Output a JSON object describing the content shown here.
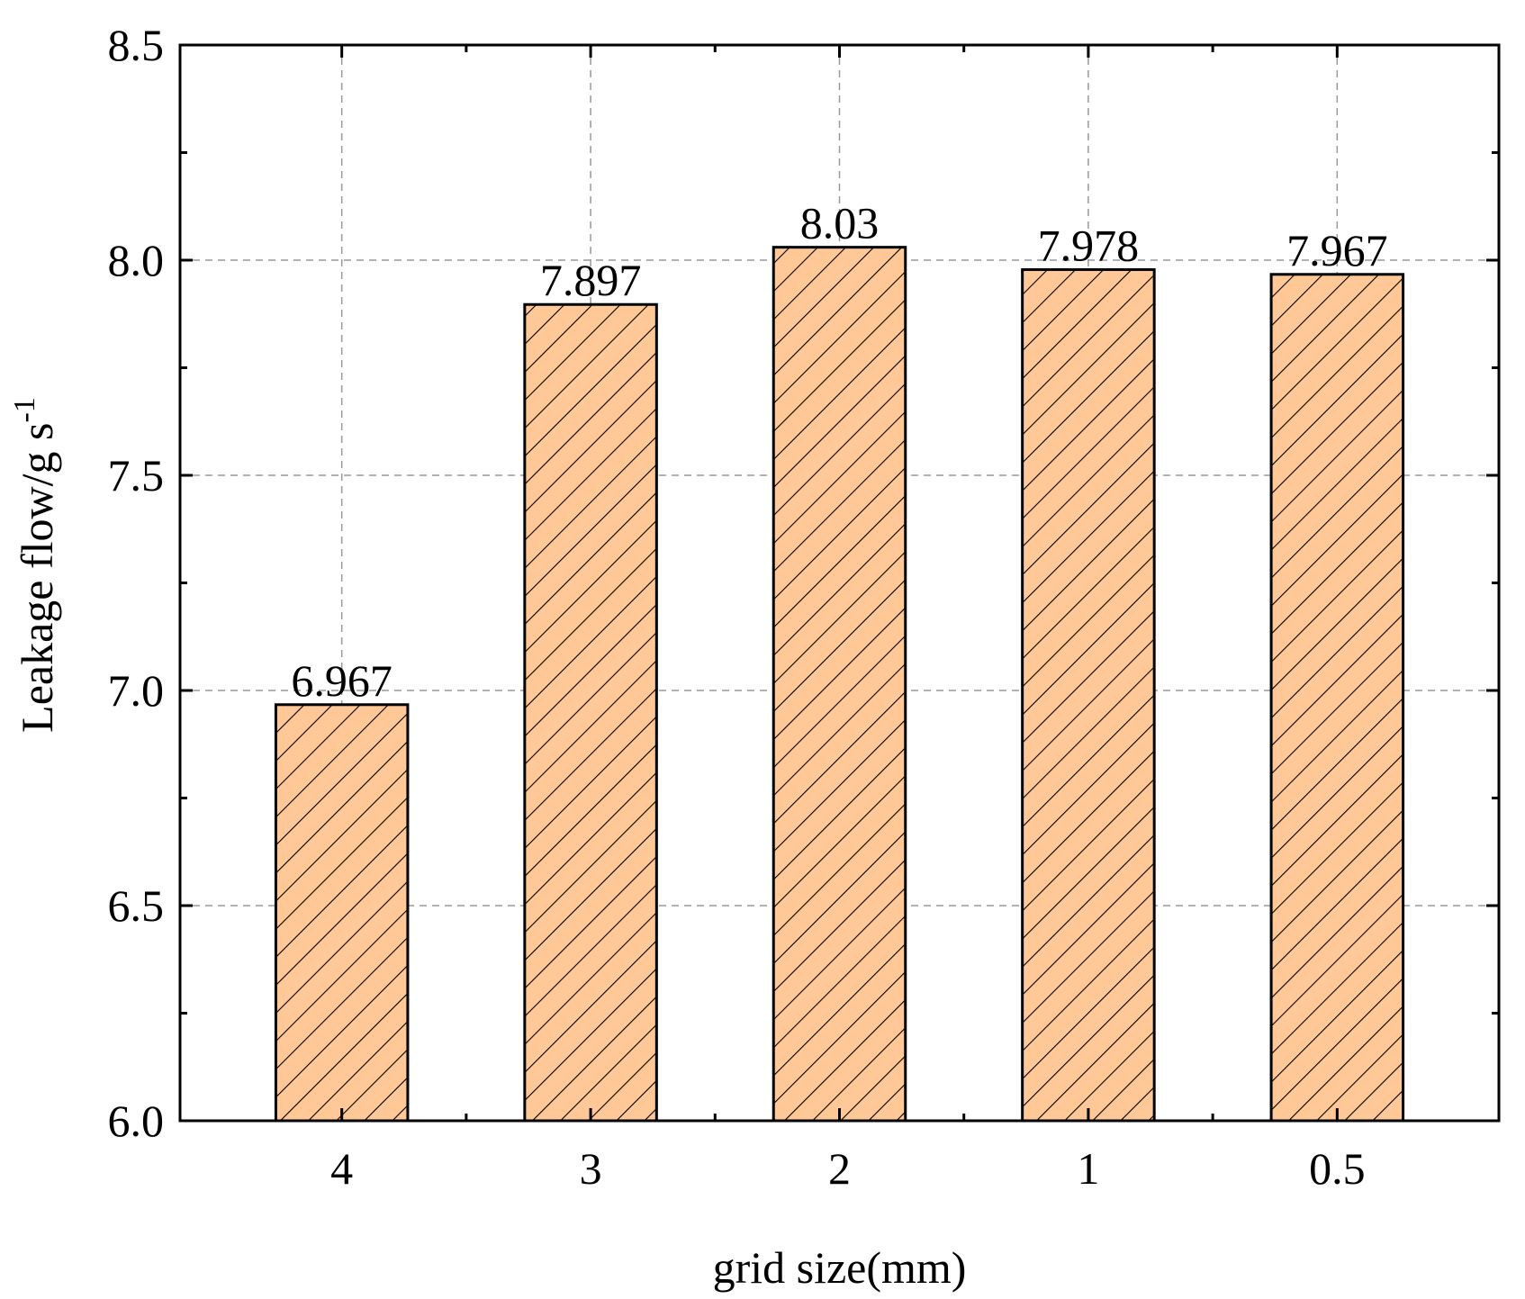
{
  "chart_data": {
    "type": "bar",
    "categories": [
      "4",
      "3",
      "2",
      "1",
      "0.5"
    ],
    "values": [
      6.967,
      7.897,
      8.03,
      7.978,
      7.967
    ],
    "data_labels": [
      "6.967",
      "7.897",
      "8.03",
      "7.978",
      "7.967"
    ],
    "xlabel": "grid size(mm)",
    "ylabel": "Leakage flow/g s",
    "ylabel_superscript": "-1",
    "ylim": [
      6.0,
      8.5
    ],
    "yticks": [
      "6.0",
      "6.5",
      "7.0",
      "7.5",
      "8.0",
      "8.5"
    ],
    "grid": true,
    "bar_fill": "#FFC896",
    "hatch": "diagonal",
    "legend": "none"
  }
}
